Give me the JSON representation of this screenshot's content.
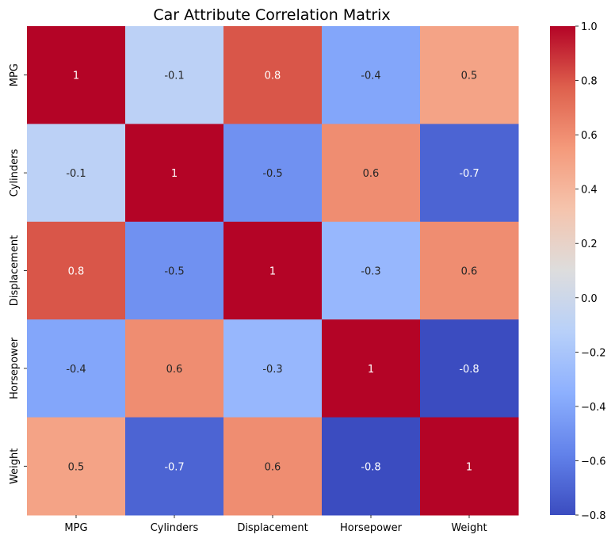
{
  "chart_data": {
    "type": "heatmap",
    "title": "Car Attribute Correlation Matrix",
    "xlabel": "",
    "ylabel": "",
    "x_categories": [
      "MPG",
      "Cylinders",
      "Displacement",
      "Horsepower",
      "Weight"
    ],
    "y_categories": [
      "MPG",
      "Cylinders",
      "Displacement",
      "Horsepower",
      "Weight"
    ],
    "values": [
      [
        1,
        -0.1,
        0.8,
        -0.4,
        0.5
      ],
      [
        -0.1,
        1,
        -0.5,
        0.6,
        -0.7
      ],
      [
        0.8,
        -0.5,
        1,
        -0.3,
        0.6
      ],
      [
        -0.4,
        0.6,
        -0.3,
        1,
        -0.8
      ],
      [
        0.5,
        -0.7,
        0.6,
        -0.8,
        1
      ]
    ],
    "annotations": [
      [
        "1",
        "-0.1",
        "0.8",
        "-0.4",
        "0.5"
      ],
      [
        "-0.1",
        "1",
        "-0.5",
        "0.6",
        "-0.7"
      ],
      [
        "0.8",
        "-0.5",
        "1",
        "-0.3",
        "0.6"
      ],
      [
        "-0.4",
        "0.6",
        "-0.3",
        "1",
        "-0.8"
      ],
      [
        "0.5",
        "-0.7",
        "0.6",
        "-0.8",
        "1"
      ]
    ],
    "colormap": "coolwarm",
    "vmin": -0.8,
    "vmax": 1.0,
    "colorbar_ticks": [
      -0.8,
      -0.6,
      -0.4,
      -0.2,
      0.0,
      0.2,
      0.4,
      0.6,
      0.8,
      1.0
    ],
    "colorbar_tick_labels": [
      "−0.8",
      "−0.6",
      "−0.4",
      "−0.2",
      "0.0",
      "0.2",
      "0.4",
      "0.6",
      "0.8",
      "1.0"
    ],
    "grid": false
  }
}
